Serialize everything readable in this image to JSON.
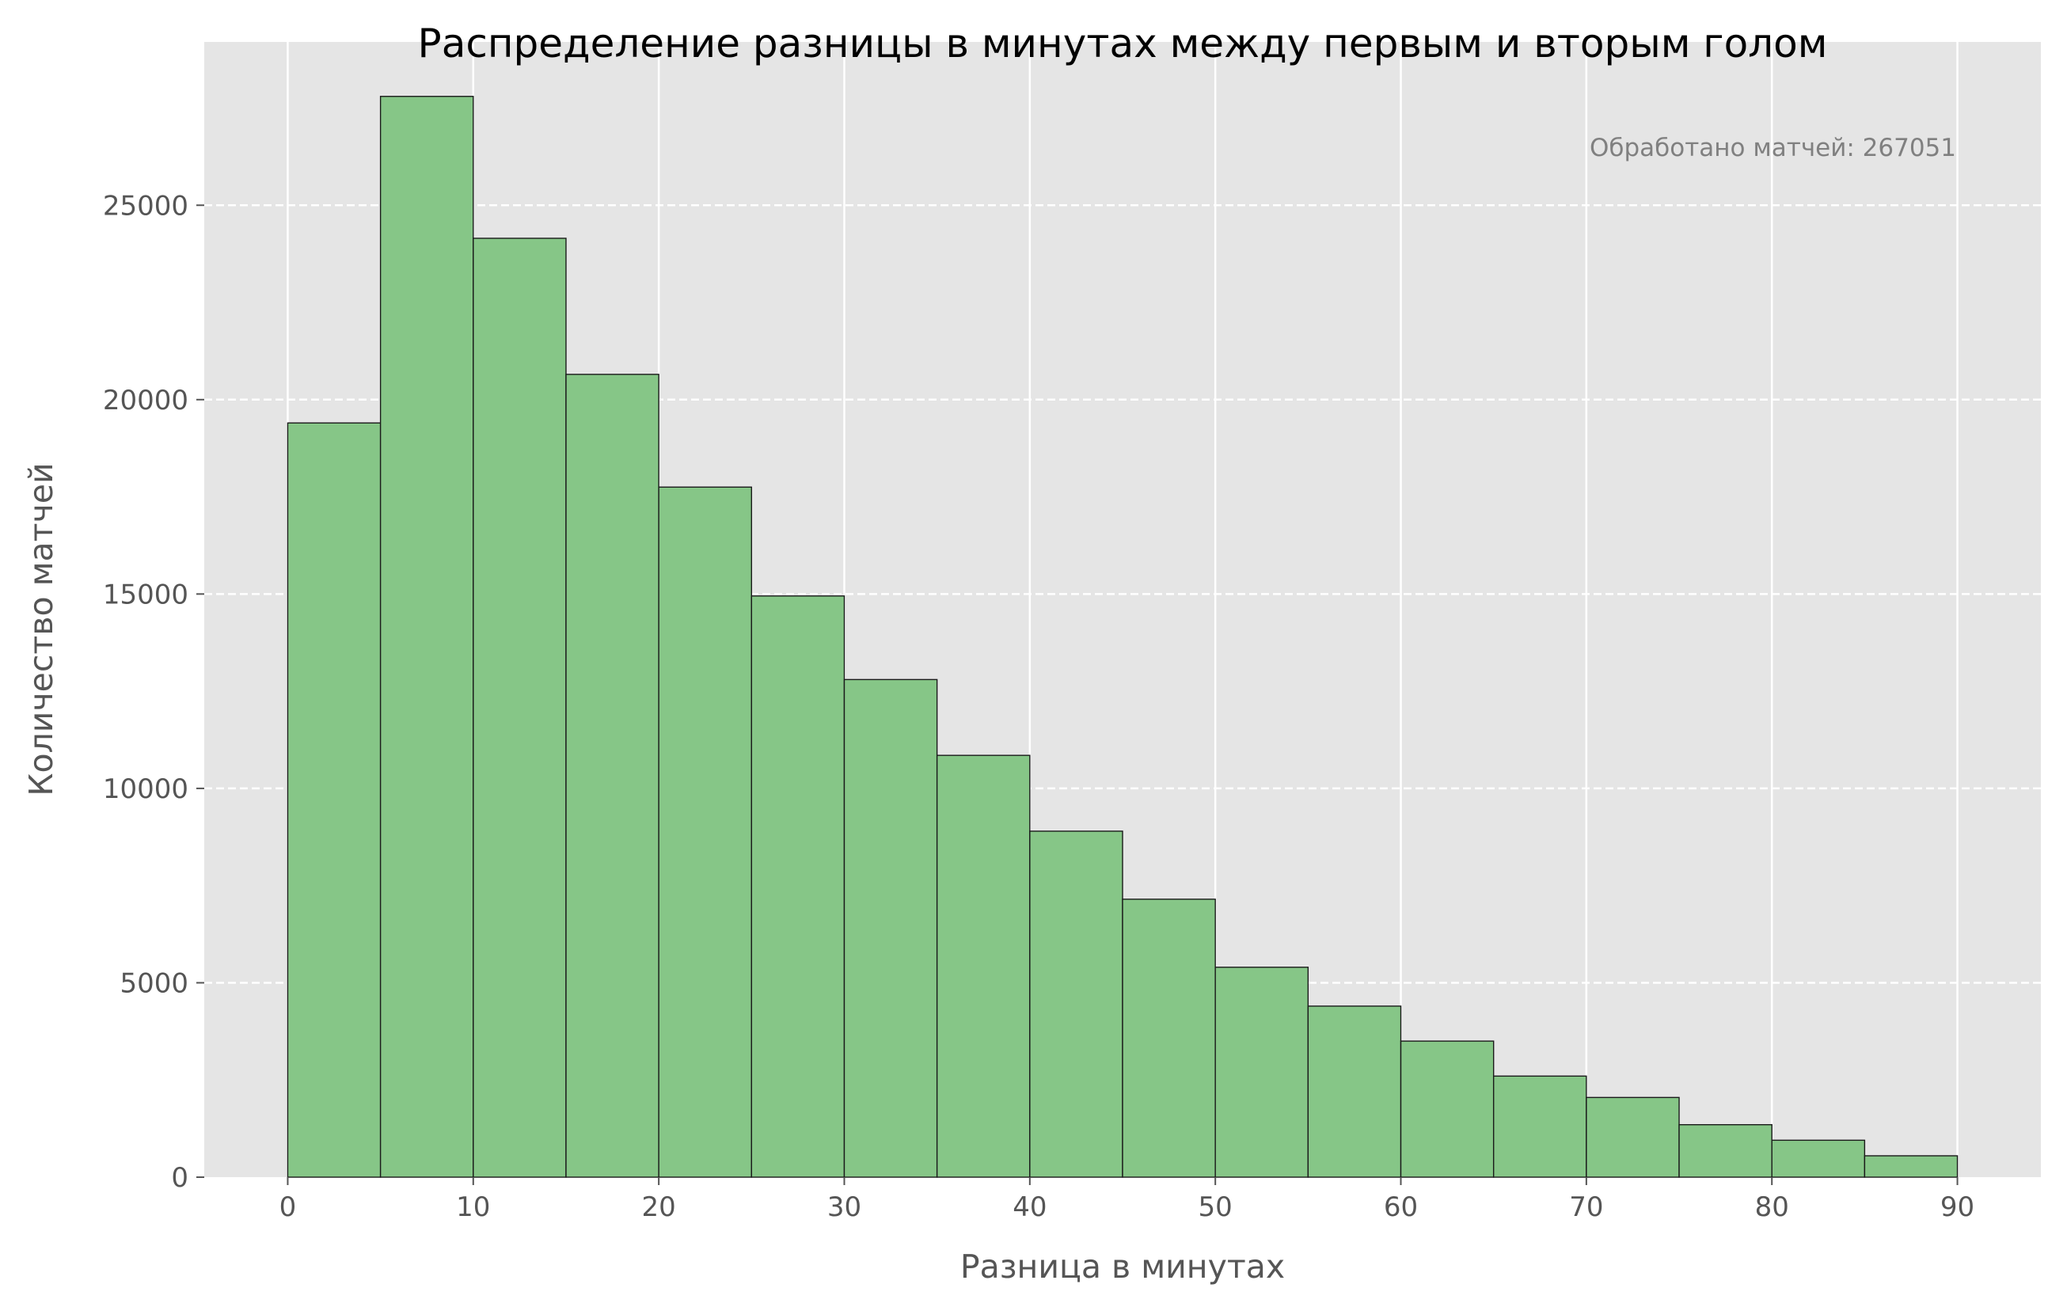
{
  "chart_data": {
    "type": "bar",
    "title": "Распределение разницы в минутах между первым и вторым голом",
    "xlabel": "Разница в минутах",
    "ylabel": "Количество матчей",
    "annotation": "Обработано матчей: 267051",
    "bin_edges": [
      0,
      5,
      10,
      15,
      20,
      25,
      30,
      35,
      40,
      45,
      50,
      55,
      60,
      65,
      70,
      75,
      80,
      85,
      90
    ],
    "values": [
      19400,
      27800,
      24150,
      20650,
      17750,
      14950,
      12800,
      10850,
      8900,
      7150,
      5400,
      4400,
      3500,
      2600,
      2050,
      1350,
      950,
      550
    ],
    "xlim": [
      -4.5,
      94.5
    ],
    "ylim": [
      0,
      29200
    ],
    "xticks": [
      0,
      10,
      20,
      30,
      40,
      50,
      60,
      70,
      80,
      90
    ],
    "yticks": [
      0,
      5000,
      10000,
      15000,
      20000,
      25000
    ],
    "x_grid": "solid",
    "y_grid": "dashed",
    "colors": {
      "background": "#e5e5e5",
      "bar_fill": "#86c687",
      "bar_edge": "#1a1a1a",
      "grid": "#ffffff"
    }
  }
}
